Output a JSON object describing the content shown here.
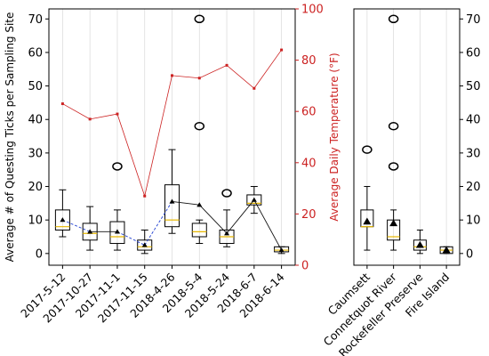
{
  "chart_data": [
    {
      "type": "box",
      "panel": "by-date",
      "categories": [
        "2017-5-12",
        "2017-10-27",
        "2017-11-1",
        "2017-11-15",
        "2018-4-26",
        "2018-5-4",
        "2018-5-24",
        "2018-6-7",
        "2018-6-14"
      ],
      "ylabel": "Average # of Questing Ticks per Sampling Site",
      "ylim": [
        -3.5,
        73
      ],
      "yticks": [
        0,
        10,
        20,
        30,
        40,
        50,
        60,
        70
      ],
      "grid": "vertical",
      "boxes": [
        {
          "min": 5,
          "q1": 7,
          "median": 8,
          "q3": 13,
          "max": 19,
          "mean": 10,
          "outliers": []
        },
        {
          "min": 1,
          "q1": 4,
          "median": 6,
          "q3": 9,
          "max": 14,
          "mean": 6.5,
          "outliers": []
        },
        {
          "min": 1,
          "q1": 3,
          "median": 5,
          "q3": 9.5,
          "max": 13,
          "mean": 6.5,
          "outliers": [
            26
          ]
        },
        {
          "min": 0,
          "q1": 1,
          "median": 2,
          "q3": 4,
          "max": 7,
          "mean": 2.5,
          "outliers": []
        },
        {
          "min": 6,
          "q1": 8,
          "median": 10,
          "q3": 20.5,
          "max": 31,
          "mean": 15.5,
          "outliers": []
        },
        {
          "min": 3,
          "q1": 5,
          "median": 6.5,
          "q3": 9,
          "max": 10,
          "mean": 14.5,
          "outliers": [
            38,
            70
          ]
        },
        {
          "min": 2,
          "q1": 3,
          "median": 5,
          "q3": 7,
          "max": 13,
          "mean": 6,
          "outliers": [
            18
          ]
        },
        {
          "min": 12,
          "q1": 14.5,
          "median": 15,
          "q3": 17.5,
          "max": 20,
          "mean": 16,
          "outliers": []
        },
        {
          "min": 0,
          "q1": 0.5,
          "median": 1,
          "q3": 2,
          "max": 2,
          "mean": 1,
          "outliers": []
        }
      ],
      "secondary_axis": {
        "ylabel": "Average Daily Temperature (°F)",
        "ylim": [
          0,
          100
        ],
        "yticks": [
          0,
          20,
          40,
          60,
          80,
          100
        ],
        "color": "#cc2222",
        "values": [
          63,
          57,
          59,
          27,
          74,
          73,
          78,
          69,
          84
        ]
      },
      "colors": {
        "mean_line_solid": "#111111",
        "mean_line_dashed": "#1f3fd1",
        "median": "#e8b800",
        "temperature": "#cc2222"
      }
    },
    {
      "type": "box",
      "panel": "by-site",
      "categories": [
        "Caumsett",
        "Connetquot River",
        "Rockefeller Preserve",
        "Fire Island"
      ],
      "ylim": [
        -3.5,
        73
      ],
      "yticks": [
        0,
        10,
        20,
        30,
        40,
        50,
        60,
        70
      ],
      "grid": "vertical",
      "boxes": [
        {
          "min": 1,
          "q1": 8,
          "median": 8,
          "q3": 13,
          "max": 20,
          "mean": 9.5,
          "outliers": [
            31
          ]
        },
        {
          "min": 1,
          "q1": 4,
          "median": 5,
          "q3": 10,
          "max": 13,
          "mean": 9,
          "outliers": [
            26,
            38,
            70
          ]
        },
        {
          "min": 0,
          "q1": 1,
          "median": 2,
          "q3": 4,
          "max": 7,
          "mean": 2.5,
          "outliers": []
        },
        {
          "min": 0,
          "q1": 0,
          "median": 1,
          "q3": 2,
          "max": 2,
          "mean": 1,
          "outliers": []
        }
      ]
    }
  ]
}
